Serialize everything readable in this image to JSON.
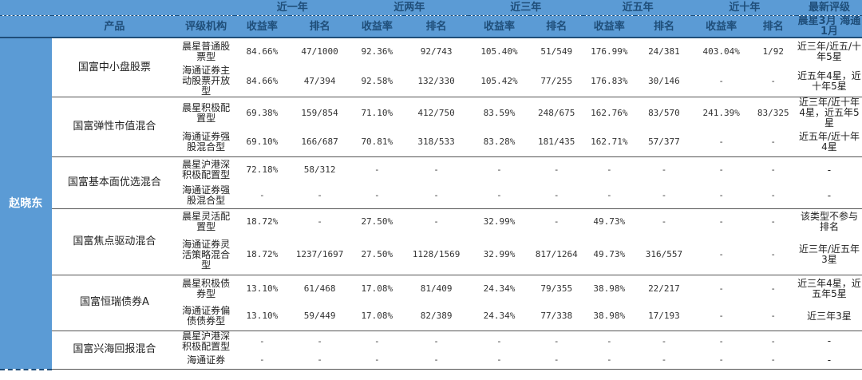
{
  "header": {
    "periods": [
      "近一年",
      "近两年",
      "近三年",
      "近五年",
      "近十年",
      "最新评级"
    ],
    "cols": {
      "product": "产品",
      "agency": "评级机构",
      "return": "收益率",
      "rank": "排名",
      "morningstar": "晨星3月",
      "haitong": "海通1月"
    }
  },
  "manager": "赵晓东",
  "funds": [
    {
      "name": "国富中小盘股票",
      "rows": [
        {
          "agency": "晨星普通股票型",
          "vals": [
            "84.66%",
            "47/1000",
            "92.36%",
            "92/743",
            "105.40%",
            "51/549",
            "176.99%",
            "24/381",
            "403.04%",
            "1/92"
          ],
          "rating": "近三年/近五/十年5星"
        },
        {
          "agency": "海通证券主动股票开放型",
          "vals": [
            "84.66%",
            "47/394",
            "92.58%",
            "132/330",
            "105.42%",
            "77/255",
            "176.83%",
            "30/146",
            "-",
            "-"
          ],
          "rating": "近五年4星，近十年5星"
        }
      ]
    },
    {
      "name": "国富弹性市值混合",
      "rows": [
        {
          "agency": "晨星积极配置型",
          "vals": [
            "69.38%",
            "159/854",
            "71.10%",
            "412/750",
            "83.59%",
            "248/675",
            "162.76%",
            "83/570",
            "241.39%",
            "83/325"
          ],
          "rating": "近三年/近十年4星，近五年5星"
        },
        {
          "agency": "海通证券强股混合型",
          "vals": [
            "69.10%",
            "166/687",
            "70.81%",
            "318/533",
            "83.28%",
            "181/435",
            "162.71%",
            "57/377",
            "-",
            "-"
          ],
          "rating": "近五年/近十年4星"
        }
      ]
    },
    {
      "name": "国富基本面优选混合",
      "rows": [
        {
          "agency": "晨星沪港深积极配置型",
          "vals": [
            "72.18%",
            "58/312",
            "-",
            "-",
            "-",
            "-",
            "-",
            "-",
            "-",
            "-"
          ],
          "rating": "-"
        },
        {
          "agency": "海通证券强股混合型",
          "vals": [
            "-",
            "-",
            "-",
            "-",
            "-",
            "-",
            "-",
            "-",
            "-",
            "-"
          ],
          "rating": "-"
        }
      ]
    },
    {
      "name": "国富焦点驱动混合",
      "rows": [
        {
          "agency": "晨星灵活配置型",
          "vals": [
            "18.72%",
            "-",
            "27.50%",
            "-",
            "32.99%",
            "-",
            "49.73%",
            "-",
            "-",
            "-"
          ],
          "rating": "该类型不参与排名"
        },
        {
          "agency": "海通证券灵活策略混合型",
          "vals": [
            "18.72%",
            "1237/1697",
            "27.50%",
            "1128/1569",
            "32.99%",
            "817/1264",
            "49.73%",
            "316/557",
            "-",
            "-"
          ],
          "rating": "近三年/近五年3星"
        }
      ]
    },
    {
      "name": "国富恒瑞债券A",
      "rows": [
        {
          "agency": "晨星积极债券型",
          "vals": [
            "13.10%",
            "61/468",
            "17.08%",
            "81/409",
            "24.34%",
            "79/355",
            "38.98%",
            "22/217",
            "-",
            "-"
          ],
          "rating": "近三年4星，近五年5星"
        },
        {
          "agency": "海通证券偏债债券型",
          "vals": [
            "13.10%",
            "59/449",
            "17.08%",
            "82/389",
            "24.34%",
            "77/338",
            "38.98%",
            "17/193",
            "-",
            "-"
          ],
          "rating": "近三年3星"
        }
      ]
    },
    {
      "name": "国富兴海回报混合",
      "rows": [
        {
          "agency": "晨星沪港深积极配置型",
          "vals": [
            "-",
            "-",
            "-",
            "-",
            "-",
            "-",
            "-",
            "-",
            "-",
            "-"
          ],
          "rating": "-"
        },
        {
          "agency": "海通证券",
          "vals": [
            "-",
            "-",
            "-",
            "-",
            "-",
            "-",
            "-",
            "-",
            "-",
            "-"
          ],
          "rating": "-"
        }
      ]
    }
  ]
}
